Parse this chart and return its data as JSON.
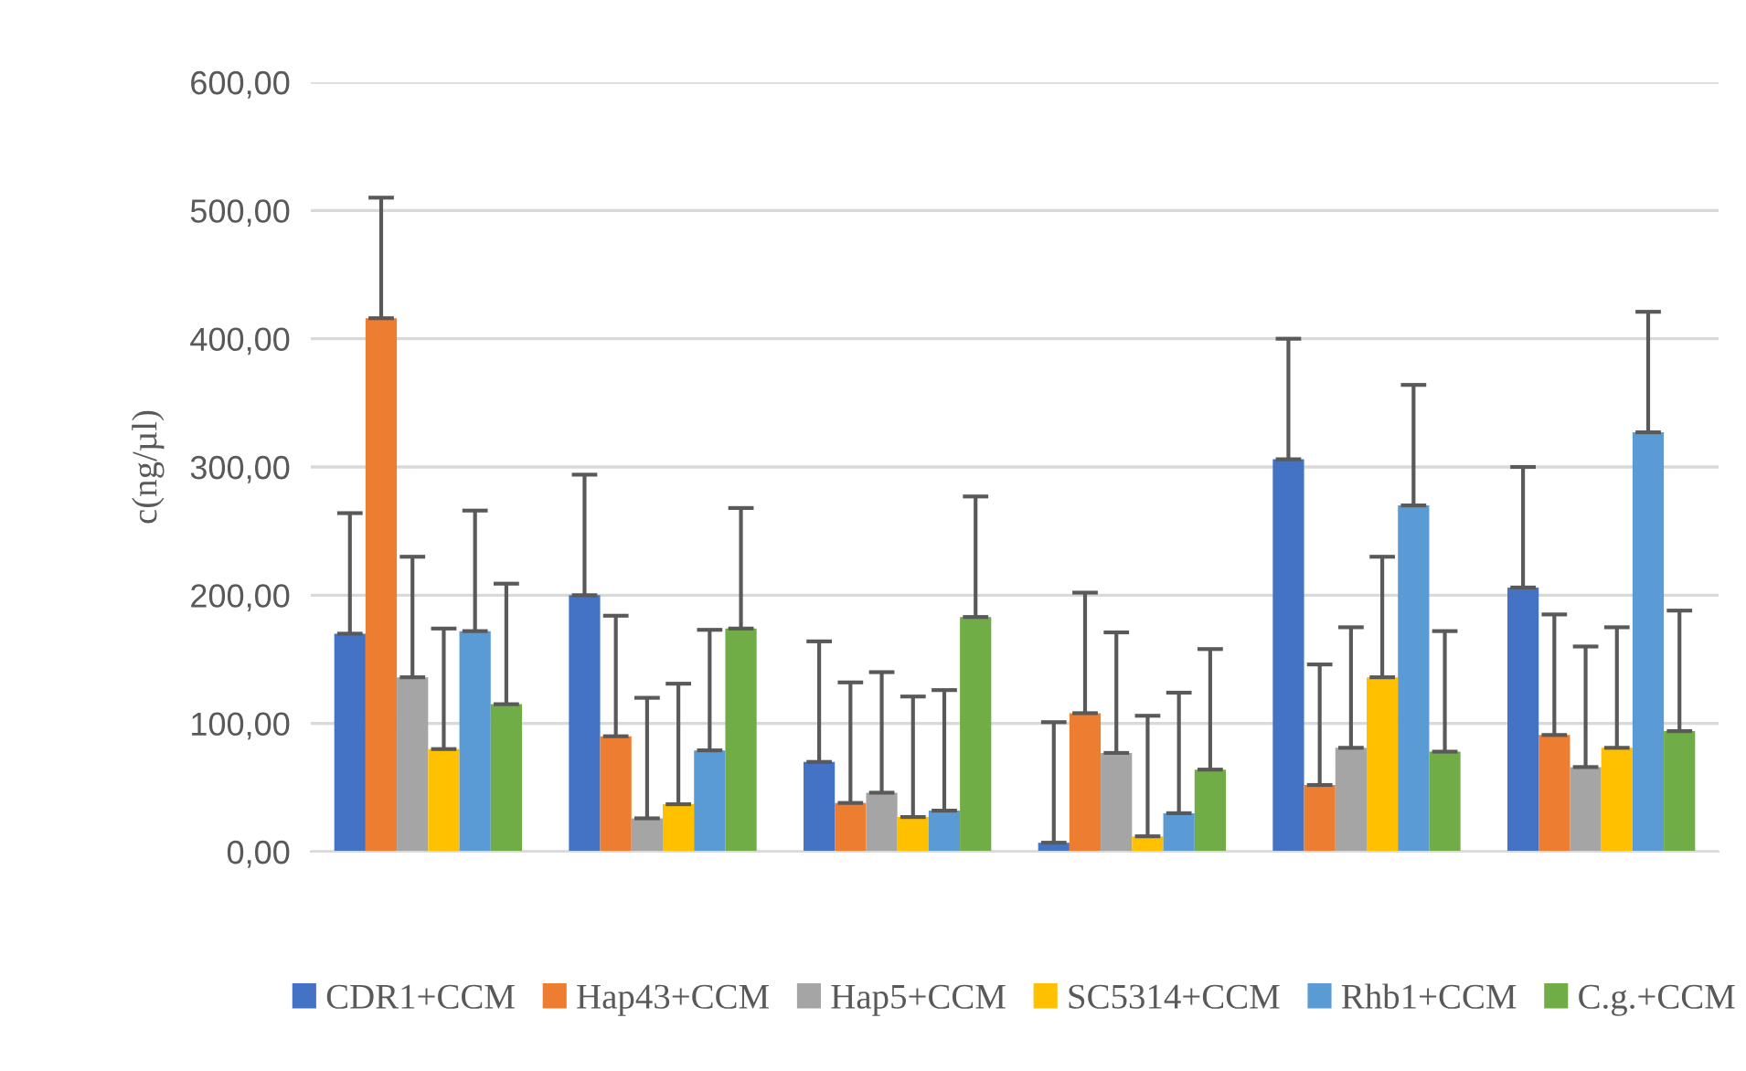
{
  "chart_data": {
    "type": "bar",
    "ylabel": "c(ng/µl)",
    "categories": [
      null,
      null,
      null,
      null,
      null,
      null
    ],
    "series": [
      {
        "name": "CDR1+CCM",
        "color": "#4472c4",
        "values": [
          170,
          200,
          70,
          7,
          306,
          206
        ],
        "errors": [
          [
            170,
            264
          ],
          [
            200,
            294
          ],
          [
            70,
            164
          ],
          [
            7,
            101
          ],
          [
            306,
            400
          ],
          [
            206,
            300
          ]
        ]
      },
      {
        "name": "Hap43+CCM",
        "color": "#ed7d31",
        "values": [
          416,
          90,
          38,
          108,
          52,
          91
        ],
        "errors": [
          [
            416,
            510
          ],
          [
            90,
            184
          ],
          [
            38,
            132
          ],
          [
            108,
            202
          ],
          [
            52,
            146
          ],
          [
            91,
            185
          ]
        ]
      },
      {
        "name": "Hap5+CCM",
        "color": "#a5a5a5",
        "values": [
          136,
          26,
          46,
          77,
          81,
          66
        ],
        "errors": [
          [
            136,
            230
          ],
          [
            26,
            120
          ],
          [
            46,
            140
          ],
          [
            77,
            171
          ],
          [
            81,
            175
          ],
          [
            66,
            160
          ]
        ]
      },
      {
        "name": "SC5314+CCM",
        "color": "#ffc000",
        "values": [
          80,
          37,
          27,
          12,
          136,
          81
        ],
        "errors": [
          [
            80,
            174
          ],
          [
            37,
            131
          ],
          [
            27,
            121
          ],
          [
            12,
            106
          ],
          [
            136,
            230
          ],
          [
            81,
            175
          ]
        ]
      },
      {
        "name": "Rhb1+CCM",
        "color": "#5b9bd5",
        "values": [
          172,
          79,
          32,
          30,
          270,
          327
        ],
        "errors": [
          [
            172,
            266
          ],
          [
            79,
            173
          ],
          [
            32,
            126
          ],
          [
            30,
            124
          ],
          [
            270,
            364
          ],
          [
            327,
            421
          ]
        ]
      },
      {
        "name": "C.g.+CCM",
        "color": "#70ad47",
        "values": [
          115,
          174,
          183,
          64,
          78,
          94
        ],
        "errors": [
          [
            115,
            209
          ],
          [
            174,
            268
          ],
          [
            183,
            277
          ],
          [
            64,
            158
          ],
          [
            78,
            172
          ],
          [
            94,
            188
          ]
        ]
      }
    ],
    "ylim": [
      0,
      600
    ],
    "yticks": [
      {
        "value": 0,
        "label": "0,00"
      },
      {
        "value": 100,
        "label": "100,00"
      },
      {
        "value": 200,
        "label": "200,00"
      },
      {
        "value": 300,
        "label": "300,00"
      },
      {
        "value": 400,
        "label": "400,00"
      },
      {
        "value": 500,
        "label": "500,00"
      },
      {
        "value": 600,
        "label": "600,00"
      }
    ],
    "grid": "y",
    "legend": "bottom"
  }
}
